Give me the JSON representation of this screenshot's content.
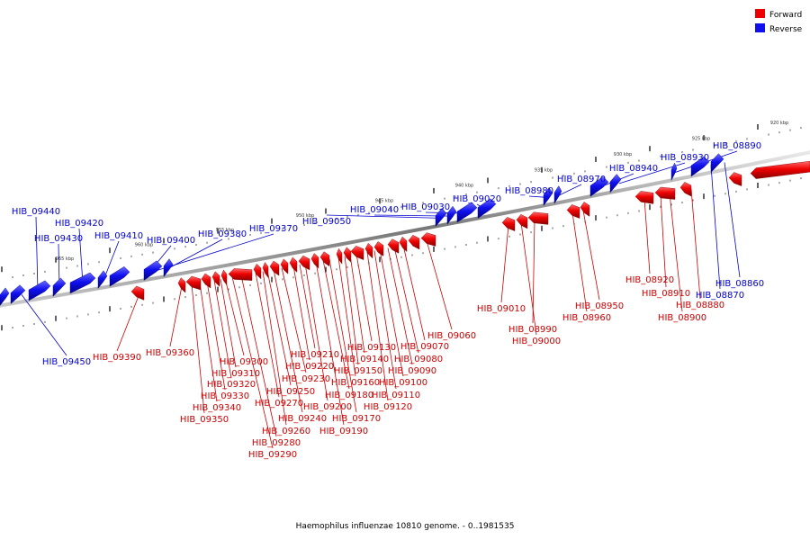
{
  "caption": "Haemophilus influenzae 10810 genome. - 0..1981535",
  "legend": [
    {
      "label": "Forward",
      "color": "#ff0000"
    },
    {
      "label": "Reverse",
      "color": "#0000ff"
    }
  ],
  "colors": {
    "forward": "#ff0000",
    "reverse": "#0000ff",
    "backbone": "#888888",
    "forward_label": "#cc0000",
    "reverse_label": "#0000cc"
  },
  "scale_labels": [
    "965 kbp",
    "960 kbp",
    "955 kbp",
    "950 kbp",
    "945 kbp",
    "940 kbp",
    "935 kbp",
    "930 kbp",
    "925 kbp",
    "920 kbp"
  ],
  "reverse_genes": [
    "HIB_09450",
    "HIB_09440",
    "HIB_09430",
    "HIB_09420",
    "HIB_09410",
    "HIB_09400",
    "HIB_09380",
    "HIB_09370",
    "HIB_09050",
    "HIB_09040",
    "HIB_09030",
    "HIB_09020",
    "HIB_08980",
    "HIB_08970",
    "HIB_08940",
    "HIB_08930",
    "HIB_08890",
    "HIB_08870",
    "HIB_08860"
  ],
  "forward_genes": [
    "HIB_09390",
    "HIB_09360",
    "HIB_09350",
    "HIB_09340",
    "HIB_09330",
    "HIB_09320",
    "HIB_09310",
    "HIB_09300",
    "HIB_09290",
    "HIB_09280",
    "HIB_09270",
    "HIB_09260",
    "HIB_09250",
    "HIB_09240",
    "HIB_09230",
    "HIB_09220",
    "HIB_09210",
    "HIB_09200",
    "HIB_09190",
    "HIB_09180",
    "HIB_09170",
    "HIB_09160",
    "HIB_09150",
    "HIB_09140",
    "HIB_09130",
    "HIB_09120",
    "HIB_09110",
    "HIB_09100",
    "HIB_09090",
    "HIB_09080",
    "HIB_09070",
    "HIB_09060",
    "HIB_09010",
    "HIB_09000",
    "HIB_08990",
    "HIB_08960",
    "HIB_08950",
    "HIB_08920",
    "HIB_08910",
    "HIB_08900",
    "HIB_08880"
  ]
}
